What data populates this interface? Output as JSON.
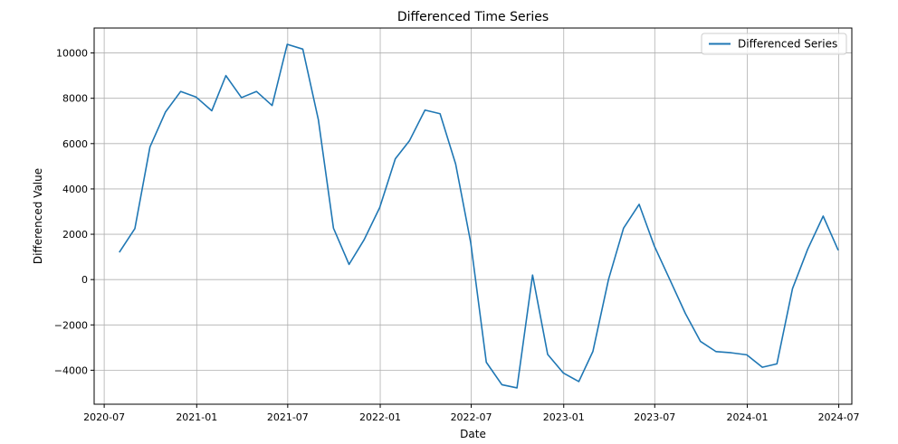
{
  "chart_data": {
    "type": "line",
    "title": "Differenced Time Series",
    "xlabel": "Date",
    "ylabel": "Differenced Value",
    "grid": true,
    "legend_position": "top-right",
    "xlim": [
      "2020-06-11",
      "2024-07-27"
    ],
    "ylim": [
      -5500,
      11100
    ],
    "xticks": [
      "2020-07",
      "2021-01",
      "2021-07",
      "2022-01",
      "2022-07",
      "2023-01",
      "2023-07",
      "2024-01",
      "2024-07"
    ],
    "yticks": [
      -4000,
      -2000,
      0,
      2000,
      4000,
      6000,
      8000,
      10000
    ],
    "series": [
      {
        "name": "Differenced Series",
        "color": "#1f77b4",
        "x": [
          "2020-07-31",
          "2020-08-31",
          "2020-09-30",
          "2020-10-31",
          "2020-11-30",
          "2020-12-31",
          "2021-01-31",
          "2021-02-28",
          "2021-03-31",
          "2021-04-30",
          "2021-05-31",
          "2021-06-30",
          "2021-07-31",
          "2021-08-31",
          "2021-09-30",
          "2021-10-31",
          "2021-11-30",
          "2021-12-31",
          "2022-01-31",
          "2022-02-28",
          "2022-03-31",
          "2022-04-30",
          "2022-05-31",
          "2022-06-30",
          "2022-07-31",
          "2022-08-31",
          "2022-09-30",
          "2022-10-31",
          "2022-11-30",
          "2022-12-31",
          "2023-01-31",
          "2023-02-28",
          "2023-03-31",
          "2023-04-30",
          "2023-05-31",
          "2023-06-30",
          "2023-07-31",
          "2023-08-31",
          "2023-09-30",
          "2023-10-31",
          "2023-11-30",
          "2023-12-31",
          "2024-01-31",
          "2024-02-29",
          "2024-03-31",
          "2024-04-30",
          "2024-05-31",
          "2024-06-30"
        ],
        "y": [
          1200,
          2250,
          5850,
          7400,
          8300,
          8050,
          7450,
          9000,
          8030,
          8300,
          7680,
          10380,
          10170,
          7050,
          2270,
          670,
          1760,
          3180,
          5330,
          6120,
          7480,
          7320,
          5100,
          1630,
          -3650,
          -4640,
          -4780,
          200,
          -3300,
          -4120,
          -4500,
          -3170,
          0,
          2270,
          3320,
          1490,
          0,
          -1500,
          -2730,
          -3180,
          -3230,
          -3320,
          -3870,
          -3720,
          -400,
          1330,
          2800,
          1290
        ]
      }
    ]
  }
}
